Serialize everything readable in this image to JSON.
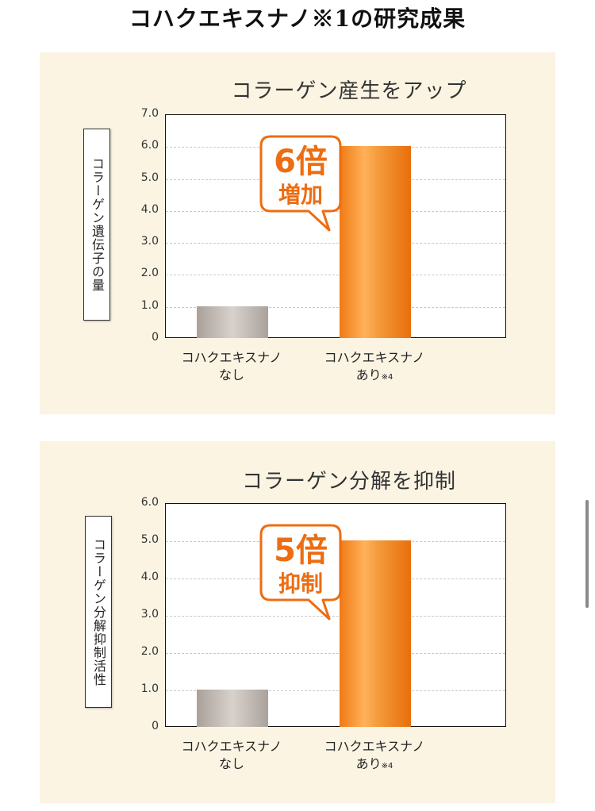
{
  "page": {
    "title": "コハクエキスナノ※1の研究成果"
  },
  "chart_data": [
    {
      "type": "bar",
      "title": "コラーゲン産生をアップ",
      "ylabel": "コラーゲン遺伝子の量",
      "ylim": [
        0,
        7
      ],
      "yticks": [
        "0",
        "1.0",
        "2.0",
        "3.0",
        "4.0",
        "5.0",
        "6.0",
        "7.0"
      ],
      "categories": [
        {
          "line1": "コハクエキスナノ",
          "line2": "なし",
          "note": ""
        },
        {
          "line1": "コハクエキスナノ",
          "line2": "あり",
          "note": "※4"
        }
      ],
      "values": [
        1.0,
        6.0
      ],
      "bar_colors": [
        "gray",
        "orange"
      ],
      "callout": {
        "line1": "6倍",
        "line2": "増加"
      },
      "grid": true
    },
    {
      "type": "bar",
      "title": "コラーゲン分解を抑制",
      "ylabel": "コラーゲン分解抑制活性",
      "ylim": [
        0,
        6
      ],
      "yticks": [
        "0",
        "1.0",
        "2.0",
        "3.0",
        "4.0",
        "5.0",
        "6.0"
      ],
      "categories": [
        {
          "line1": "コハクエキスナノ",
          "line2": "なし",
          "note": ""
        },
        {
          "line1": "コハクエキスナノ",
          "line2": "あり",
          "note": "※4"
        }
      ],
      "values": [
        1.0,
        5.0
      ],
      "bar_colors": [
        "gray",
        "orange"
      ],
      "callout": {
        "line1": "5倍",
        "line2": "抑制"
      },
      "grid": true
    }
  ],
  "colors": {
    "panel_bg": "#fbf4e3",
    "accent_orange": "#ec6d12",
    "bar_gray": "#bdb5af"
  }
}
